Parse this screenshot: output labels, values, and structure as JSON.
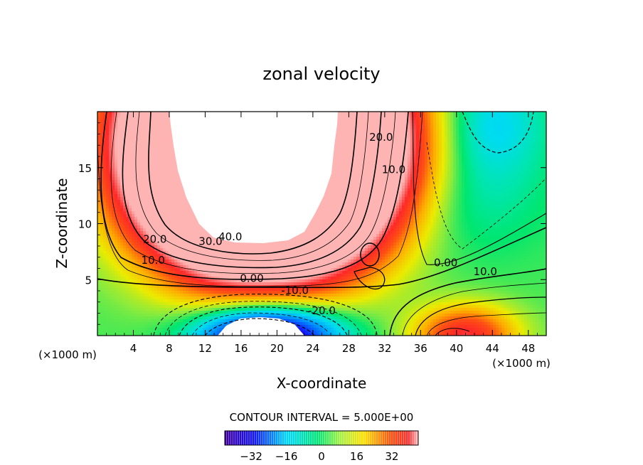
{
  "chart_data": {
    "type": "heatmap",
    "title": "zonal velocity",
    "xlabel": "X-coordinate",
    "ylabel": "Z-coordinate",
    "x_unit_left": "(×1000 m)",
    "x_unit_right": "(×1000 m)",
    "xlim": [
      0,
      50
    ],
    "ylim": [
      0,
      20
    ],
    "x_ticks": [
      "4",
      "8",
      "12",
      "16",
      "20",
      "24",
      "28",
      "32",
      "36",
      "40",
      "44",
      "48"
    ],
    "x_tick_values": [
      4,
      8,
      12,
      16,
      20,
      24,
      28,
      32,
      36,
      40,
      44,
      48
    ],
    "y_ticks": [
      "5",
      "10",
      "15"
    ],
    "y_tick_values": [
      5,
      10,
      15
    ],
    "contour_interval_text": "CONTOUR INTERVAL = 5.000E+00",
    "contour_interval": 5,
    "contour_labels": [
      {
        "text": "40.0",
        "x": 14.8,
        "z": 8.5
      },
      {
        "text": "30.0",
        "x": 12.6,
        "z": 8.1
      },
      {
        "text": "20.0",
        "x": 6.4,
        "z": 8.3
      },
      {
        "text": "10.0",
        "x": 6.2,
        "z": 6.4
      },
      {
        "text": "0.00",
        "x": 17.2,
        "z": 4.8
      },
      {
        "text": "-10.0",
        "x": 22.0,
        "z": 3.7
      },
      {
        "text": "-20.0",
        "x": 25.0,
        "z": 1.9
      },
      {
        "text": "20.0",
        "x": 31.6,
        "z": 17.4
      },
      {
        "text": "10.0",
        "x": 33.0,
        "z": 14.5
      },
      {
        "text": "0.00",
        "x": 38.8,
        "z": 6.2
      },
      {
        "text": "10.0",
        "x": 43.2,
        "z": 5.4
      }
    ],
    "colorbar": {
      "ticks": [
        "-32",
        "-16",
        "0",
        "16",
        "32"
      ],
      "tick_values": [
        -32,
        -16,
        0,
        16,
        32
      ],
      "range": [
        -44,
        44
      ]
    },
    "blanked_regions": [
      {
        "name": "upper jet core (u > 44)",
        "center_x": 18.5,
        "center_z": 16.5
      },
      {
        "name": "lower core (u < -44)",
        "center_x": 19.3,
        "center_z": 1.0
      }
    ]
  }
}
